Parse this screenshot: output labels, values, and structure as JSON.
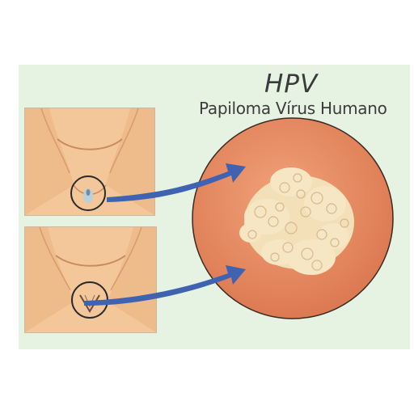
{
  "title": "HPV",
  "subtitle": "Papiloma Vírus Humano",
  "colors": {
    "background_panel": "#e6f3e2",
    "skin": "#f4c79a",
    "skin_shadow": "#d99b6c",
    "lesion_disc": "#e8865e",
    "wart": "#f6e6c4",
    "arrow": "#3f63b0",
    "circle_outline": "#2a2a2a"
  },
  "illustrations": [
    {
      "name": "female-pelvis-illustration"
    },
    {
      "name": "male-pelvis-illustration"
    }
  ],
  "icons": [
    "arrow-right-icon",
    "arrow-right-icon"
  ]
}
